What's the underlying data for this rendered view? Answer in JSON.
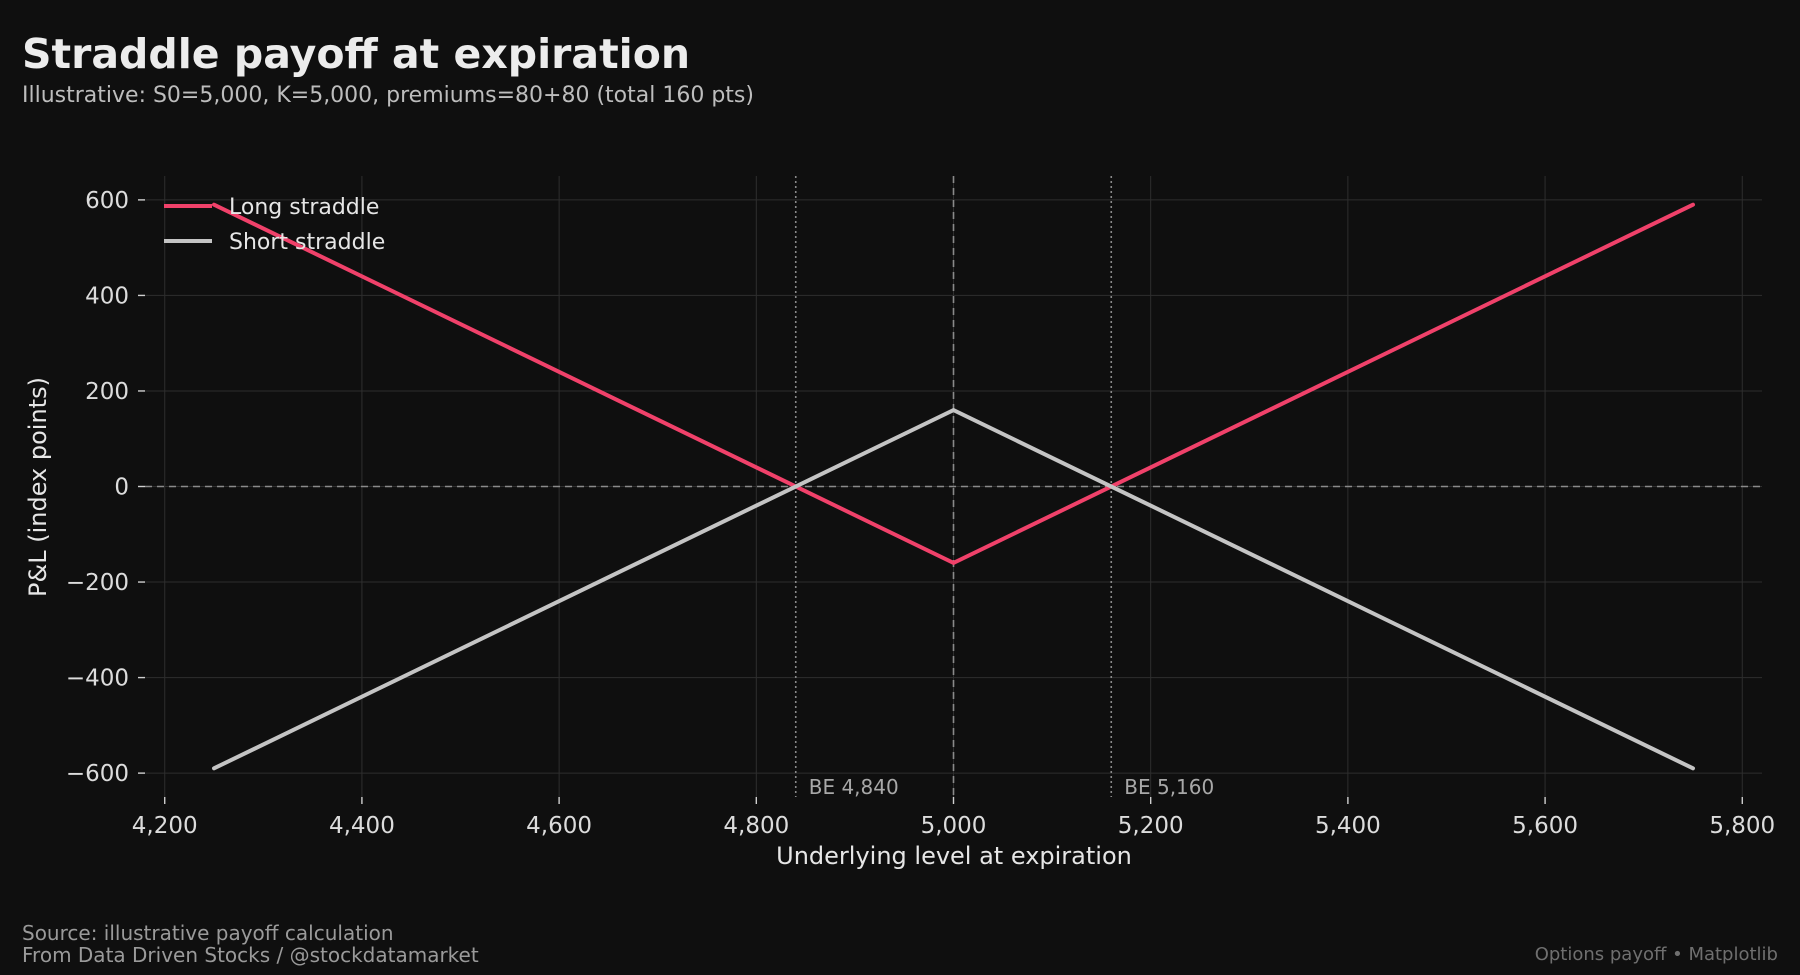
{
  "header": {
    "title": "Straddle payoff at expiration",
    "subtitle": "Illustrative: S0=5,000, K=5,000, premiums=80+80 (total 160 pts)"
  },
  "footer": {
    "source": "Source: illustrative payoff calculation",
    "credit": "From Data Driven Stocks / @stockdatamarket",
    "right": "Options payoff • Matplotlib"
  },
  "colors": {
    "background": "#0f0f0f",
    "long_straddle": "#f0416a",
    "short_straddle": "#c4c4c4",
    "grid": "#2e2e2e",
    "reference_line": "#8a8a8a"
  },
  "chart_data": {
    "type": "line",
    "xlabel": "Underlying level at expiration",
    "ylabel": "P&L (index points)",
    "xlim": [
      4180,
      5820
    ],
    "ylim": [
      -650,
      650
    ],
    "xticks": [
      4200,
      4400,
      4600,
      4800,
      5000,
      5200,
      5400,
      5600,
      5800
    ],
    "xtick_labels": [
      "4,200",
      "4,400",
      "4,600",
      "4,800",
      "5,000",
      "5,200",
      "5,400",
      "5,600",
      "5,800"
    ],
    "yticks": [
      -600,
      -400,
      -200,
      0,
      200,
      400,
      600
    ],
    "ytick_labels": [
      "−600",
      "−400",
      "−200",
      "0",
      "200",
      "400",
      "600"
    ],
    "grid": true,
    "legend_position": "top-left",
    "series": [
      {
        "name": "Long straddle",
        "color": "#f0416a",
        "x": [
          4250,
          5000,
          5750
        ],
        "y": [
          590,
          -160,
          590
        ]
      },
      {
        "name": "Short straddle",
        "color": "#c4c4c4",
        "x": [
          4250,
          5000,
          5750
        ],
        "y": [
          -590,
          160,
          -590
        ]
      }
    ],
    "reference_lines": {
      "zero_y": 0,
      "strike_x": 5000
    },
    "annotations": [
      {
        "x": 4840,
        "label": "BE 4,840"
      },
      {
        "x": 5160,
        "label": "BE 5,160"
      }
    ]
  }
}
